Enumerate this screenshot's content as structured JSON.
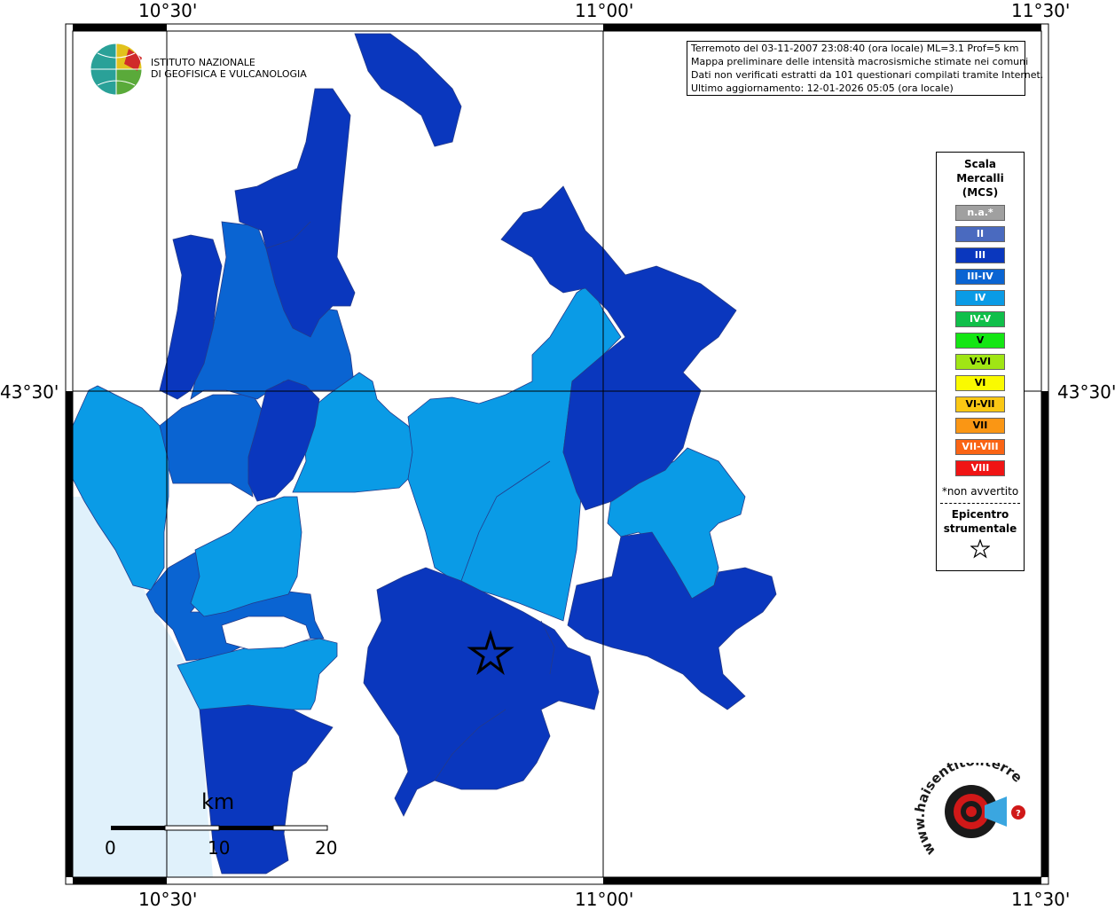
{
  "map": {
    "lon_labels_top": [
      "10°30'",
      "11°00'",
      "11°30'"
    ],
    "lon_labels_bottom": [
      "10°30'",
      "11°00'",
      "11°30'"
    ],
    "lat_labels": [
      "43°30'",
      "43°30'"
    ]
  },
  "logo": {
    "line1": "ISTITUTO NAZIONALE",
    "line2": "DI GEOFISICA E VULCANOLOGIA"
  },
  "info": {
    "line1": "Terremoto del 03-11-2007 23:08:40 (ora locale) ML=3.1 Prof=5 km",
    "line2": "Mappa preliminare delle intensità macrosismiche stimate nei comuni",
    "line3": "Dati non verificati estratti da 101 questionari compilati tramite Internet.",
    "line4": "Ultimo aggiornamento: 12-01-2026 05:05 (ora locale)"
  },
  "legend": {
    "title1": "Scala",
    "title2": "Mercalli",
    "title3": "(MCS)",
    "items": [
      {
        "label": "n.a.*",
        "color": "#a0a0a0",
        "text_color": "#ffffff"
      },
      {
        "label": "II",
        "color": "#4a6abf",
        "text_color": "#ffffff"
      },
      {
        "label": "III",
        "color": "#0a37be",
        "text_color": "#ffffff"
      },
      {
        "label": "III-IV",
        "color": "#0a64d2",
        "text_color": "#ffffff"
      },
      {
        "label": "IV",
        "color": "#0a9be6",
        "text_color": "#ffffff"
      },
      {
        "label": "IV-V",
        "color": "#10bf4a",
        "text_color": "#ffffff"
      },
      {
        "label": "V",
        "color": "#14e614",
        "text_color": "#000000"
      },
      {
        "label": "V-VI",
        "color": "#a0e614",
        "text_color": "#000000"
      },
      {
        "label": "VI",
        "color": "#fafa00",
        "text_color": "#000000"
      },
      {
        "label": "VI-VII",
        "color": "#fac814",
        "text_color": "#000000"
      },
      {
        "label": "VII",
        "color": "#fa9614",
        "text_color": "#000000"
      },
      {
        "label": "VII-VIII",
        "color": "#fa6414",
        "text_color": "#ffffff"
      },
      {
        "label": "VIII",
        "color": "#f01414",
        "text_color": "#ffffff"
      }
    ],
    "note": "*non avvertito",
    "epicenter1": "Epicentro",
    "epicenter2": "strumentale"
  },
  "scale_bar": {
    "unit": "km",
    "labels": [
      "0",
      "10",
      "20"
    ]
  },
  "watermark": {
    "text": "www.haisentitoilterremoto.it"
  },
  "colors": {
    "intensity_III": "#0a37be",
    "intensity_III_IV": "#0a64d2",
    "intensity_IV": "#0a9be6",
    "sea": "#e0f1fb"
  }
}
